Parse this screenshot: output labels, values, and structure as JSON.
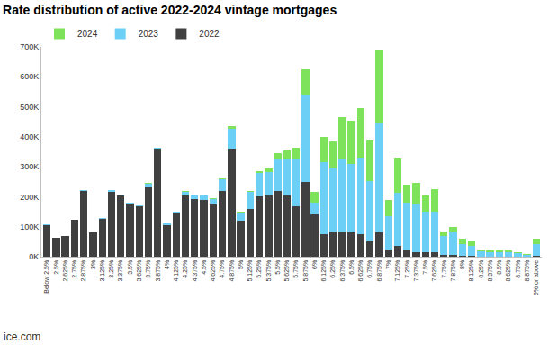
{
  "chart_data": {
    "type": "bar",
    "title": "Rate distribution of active 2022-2024 vintage mortgages",
    "annotations": [
      "ice.com"
    ],
    "stacked": true,
    "grid": false,
    "legend": "top-left",
    "categories": [
      "Below 2.5%",
      "2.5%",
      "2.625%",
      "2.75%",
      "2.875%",
      "3%",
      "3.125%",
      "3.25%",
      "3.375%",
      "3.5%",
      "3.625%",
      "3.75%",
      "3.875%",
      "4%",
      "4.125%",
      "4.25%",
      "4.375%",
      "4.5%",
      "4.625%",
      "4.75%",
      "4.875%",
      "5%",
      "5.125%",
      "5.25%",
      "5.375%",
      "5.5%",
      "5.625%",
      "5.75%",
      "5.875%",
      "6%",
      "6.125%",
      "6.25%",
      "6.375%",
      "6.5%",
      "6.625%",
      "6.75%",
      "6.875%",
      "7%",
      "7.125%",
      "7.25%",
      "7.375%",
      "7.5%",
      "7.625%",
      "7.75%",
      "7.875%",
      "8%",
      "8.125%",
      "8.25%",
      "8.375%",
      "8.5%",
      "8.625%",
      "8.75%",
      "8.875%",
      "9% or above"
    ],
    "series": [
      {
        "name": "2022",
        "color": "#404040",
        "values": [
          105000,
          63000,
          68000,
          122000,
          218000,
          80000,
          127000,
          217000,
          205000,
          176000,
          168000,
          232000,
          360000,
          106000,
          145000,
          205000,
          193000,
          190000,
          175000,
          220000,
          362000,
          120000,
          160000,
          200000,
          203000,
          220000,
          205000,
          168000,
          250000,
          140000,
          75000,
          85000,
          80000,
          80000,
          75000,
          52000,
          80000,
          25000,
          35000,
          22000,
          15000,
          15000,
          15000,
          5000,
          5000,
          3000,
          2000,
          1000,
          1000,
          1000,
          1000,
          1000,
          500,
          3000
        ]
      },
      {
        "name": "2023",
        "color": "#6ccff6",
        "values": [
          2000,
          1000,
          1000,
          2000,
          3000,
          2000,
          2000,
          4000,
          3000,
          3000,
          3000,
          12000,
          4000,
          4000,
          5000,
          12000,
          11000,
          14000,
          18000,
          38000,
          65000,
          25000,
          55000,
          78000,
          80000,
          103000,
          122000,
          160000,
          290000,
          40000,
          240000,
          210000,
          245000,
          230000,
          255000,
          200000,
          365000,
          110000,
          178000,
          158000,
          160000,
          135000,
          135000,
          65000,
          75000,
          40000,
          35000,
          18000,
          14000,
          15000,
          14000,
          10000,
          7000,
          40000
        ]
      },
      {
        "name": "2024",
        "color": "#7ee35a",
        "values": [
          0,
          0,
          0,
          0,
          0,
          0,
          0,
          0,
          0,
          0,
          0,
          1000,
          0,
          0,
          0,
          1000,
          0,
          0,
          2000,
          2000,
          8000,
          5000,
          5000,
          7000,
          10000,
          22000,
          28000,
          37000,
          85000,
          35000,
          85000,
          90000,
          140000,
          145000,
          165000,
          138000,
          243000,
          55000,
          117000,
          60000,
          70000,
          55000,
          75000,
          15000,
          20000,
          17000,
          13000,
          6000,
          5000,
          6000,
          5000,
          3000,
          2500,
          17000
        ]
      }
    ],
    "ylim": [
      0,
      700000
    ],
    "yticks": [
      {
        "value": 0,
        "label": "0K"
      },
      {
        "value": 100000,
        "label": "100K"
      },
      {
        "value": 200000,
        "label": "200K"
      },
      {
        "value": 300000,
        "label": "300K"
      },
      {
        "value": 400000,
        "label": "400K"
      },
      {
        "value": 500000,
        "label": "500K"
      },
      {
        "value": 600000,
        "label": "600K"
      },
      {
        "value": 700000,
        "label": "700K"
      }
    ]
  }
}
